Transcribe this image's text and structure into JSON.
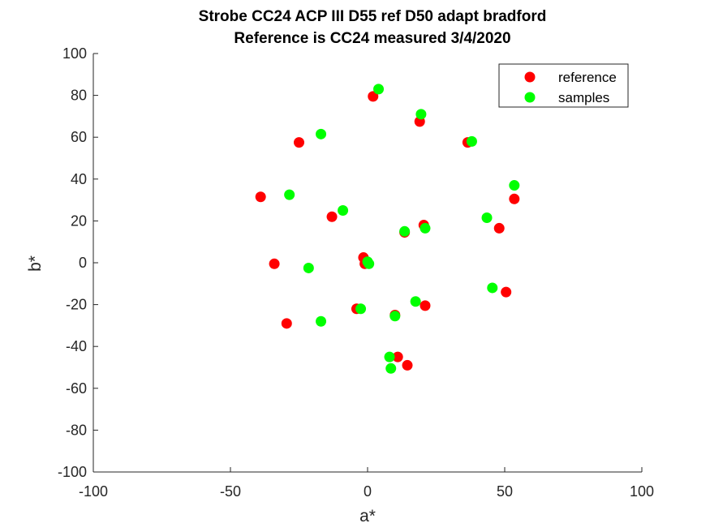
{
  "chart_data": {
    "type": "scatter",
    "title": "Strobe CC24 ACP III D55 ref D50 adapt bradford",
    "subtitle": "Reference is CC24 measured 3/4/2020",
    "xlabel": "a*",
    "ylabel": "b*",
    "xlim": [
      -100,
      100
    ],
    "ylim": [
      -100,
      100
    ],
    "x_ticks": [
      -100,
      -50,
      0,
      50,
      100
    ],
    "y_ticks": [
      -100,
      -80,
      -60,
      -40,
      -20,
      0,
      20,
      40,
      60,
      80,
      100
    ],
    "grid": false,
    "legend_position": "top-right",
    "series": [
      {
        "name": "reference",
        "color": "#ff0000",
        "points": [
          [
            2,
            79.5
          ],
          [
            19,
            67.5
          ],
          [
            -25,
            57.5
          ],
          [
            36.5,
            57.5
          ],
          [
            -39,
            31.5
          ],
          [
            53.5,
            30.5
          ],
          [
            -13,
            22
          ],
          [
            20.5,
            18
          ],
          [
            48,
            16.5
          ],
          [
            13.5,
            14.5
          ],
          [
            -1.5,
            2.5
          ],
          [
            -1,
            -0.5
          ],
          [
            -34,
            -0.5
          ],
          [
            50.5,
            -14
          ],
          [
            -4,
            -22
          ],
          [
            21,
            -20.5
          ],
          [
            10,
            -25
          ],
          [
            -29.5,
            -29
          ],
          [
            11,
            -45
          ],
          [
            14.5,
            -49
          ]
        ]
      },
      {
        "name": "samples",
        "color": "#00ff00",
        "points": [
          [
            4,
            83
          ],
          [
            19.5,
            71
          ],
          [
            -17,
            61.5
          ],
          [
            38,
            58
          ],
          [
            53.5,
            37
          ],
          [
            -28.5,
            32.5
          ],
          [
            -9,
            25
          ],
          [
            43.5,
            21.5
          ],
          [
            21,
            16.5
          ],
          [
            13.5,
            15
          ],
          [
            0,
            0.5
          ],
          [
            0.5,
            -0.5
          ],
          [
            -21.5,
            -2.5
          ],
          [
            45.5,
            -12
          ],
          [
            17.5,
            -18.5
          ],
          [
            -2.5,
            -22
          ],
          [
            10,
            -25.5
          ],
          [
            -17,
            -28
          ],
          [
            8,
            -45
          ],
          [
            8.5,
            -50.5
          ]
        ]
      }
    ]
  }
}
